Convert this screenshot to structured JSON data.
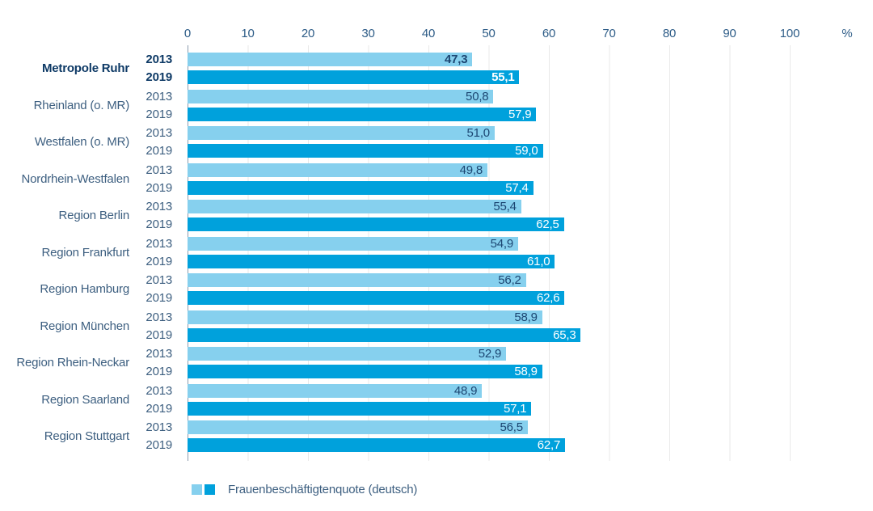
{
  "chart_data": {
    "type": "bar",
    "orientation": "horizontal",
    "title": "",
    "xlabel": "",
    "ylabel": "",
    "xlim": [
      0,
      100
    ],
    "grid": true,
    "axis_unit_label": "%",
    "ticks": [
      "0",
      "10",
      "20",
      "30",
      "40",
      "50",
      "60",
      "70",
      "80",
      "90",
      "100"
    ],
    "series_years": [
      "2013",
      "2019"
    ],
    "colors": {
      "2013": "#86d0ee",
      "2019": "#00a1dc"
    },
    "value_label_colors": {
      "2013": "#1c4672",
      "2019": "#ffffff"
    },
    "legend_label": "Frauenbeschäftigtenquote (deutsch)",
    "legend_position": "bottom",
    "groups": [
      {
        "name": "Metropole Ruhr",
        "bold": true,
        "values": [
          {
            "year": "2013",
            "value": 47.3,
            "label": "47,3"
          },
          {
            "year": "2019",
            "value": 55.1,
            "label": "55,1"
          }
        ]
      },
      {
        "name": "Rheinland (o. MR)",
        "bold": false,
        "values": [
          {
            "year": "2013",
            "value": 50.8,
            "label": "50,8"
          },
          {
            "year": "2019",
            "value": 57.9,
            "label": "57,9"
          }
        ]
      },
      {
        "name": "Westfalen (o. MR)",
        "bold": false,
        "values": [
          {
            "year": "2013",
            "value": 51.0,
            "label": "51,0"
          },
          {
            "year": "2019",
            "value": 59.0,
            "label": "59,0"
          }
        ]
      },
      {
        "name": "Nordrhein-Westfalen",
        "bold": false,
        "values": [
          {
            "year": "2013",
            "value": 49.8,
            "label": "49,8"
          },
          {
            "year": "2019",
            "value": 57.4,
            "label": "57,4"
          }
        ]
      },
      {
        "name": "Region Berlin",
        "bold": false,
        "values": [
          {
            "year": "2013",
            "value": 55.4,
            "label": "55,4"
          },
          {
            "year": "2019",
            "value": 62.5,
            "label": "62,5"
          }
        ]
      },
      {
        "name": "Region Frankfurt",
        "bold": false,
        "values": [
          {
            "year": "2013",
            "value": 54.9,
            "label": "54,9"
          },
          {
            "year": "2019",
            "value": 61.0,
            "label": "61,0"
          }
        ]
      },
      {
        "name": "Region Hamburg",
        "bold": false,
        "values": [
          {
            "year": "2013",
            "value": 56.2,
            "label": "56,2"
          },
          {
            "year": "2019",
            "value": 62.6,
            "label": "62,6"
          }
        ]
      },
      {
        "name": "Region München",
        "bold": false,
        "values": [
          {
            "year": "2013",
            "value": 58.9,
            "label": "58,9"
          },
          {
            "year": "2019",
            "value": 65.3,
            "label": "65,3"
          }
        ]
      },
      {
        "name": "Region Rhein-Neckar",
        "bold": false,
        "values": [
          {
            "year": "2013",
            "value": 52.9,
            "label": "52,9"
          },
          {
            "year": "2019",
            "value": 58.9,
            "label": "58,9"
          }
        ]
      },
      {
        "name": "Region Saarland",
        "bold": false,
        "values": [
          {
            "year": "2013",
            "value": 48.9,
            "label": "48,9"
          },
          {
            "year": "2019",
            "value": 57.1,
            "label": "57,1"
          }
        ]
      },
      {
        "name": "Region Stuttgart",
        "bold": false,
        "values": [
          {
            "year": "2013",
            "value": 56.5,
            "label": "56,5"
          },
          {
            "year": "2019",
            "value": 62.7,
            "label": "62,7"
          }
        ]
      }
    ]
  }
}
